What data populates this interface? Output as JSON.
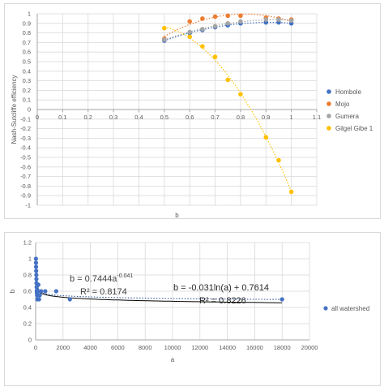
{
  "chart_data": [
    {
      "type": "scatter",
      "title": "",
      "xlabel": "b",
      "ylabel": "Nash-Sutcliffe efficiency",
      "xlim": [
        0,
        1.1
      ],
      "ylim": [
        -1,
        1
      ],
      "x_ticks": [
        "0",
        "0.1",
        "0.2",
        "0.3",
        "0.4",
        "0.5",
        "0.6",
        "0.7",
        "0.8",
        "0.9",
        "1",
        "1.1"
      ],
      "y_ticks": [
        "1",
        "0.9",
        "0.8",
        "0.7",
        "0.6",
        "0.5",
        "0.4",
        "0.3",
        "0.2",
        "0.1",
        "0",
        "-0.1",
        "-0.2",
        "-0.3",
        "-0.4",
        "-0.5",
        "-0.6",
        "-0.7",
        "-0.8",
        "-0.9",
        "-1"
      ],
      "grid": true,
      "legend_position": "right",
      "series": [
        {
          "name": "Hombole",
          "color": "#4472C4",
          "trendline": "polynomial",
          "x": [
            0.5,
            0.6,
            0.65,
            0.7,
            0.75,
            0.8,
            0.9,
            0.95,
            1.0
          ],
          "y": [
            0.72,
            0.8,
            0.83,
            0.86,
            0.88,
            0.9,
            0.91,
            0.91,
            0.9
          ]
        },
        {
          "name": "Mojo",
          "color": "#ED7D31",
          "trendline": "polynomial",
          "x": [
            0.5,
            0.6,
            0.65,
            0.7,
            0.75,
            0.8,
            0.9,
            0.95,
            1.0
          ],
          "y": [
            0.74,
            0.92,
            0.95,
            0.97,
            0.98,
            0.98,
            0.96,
            0.95,
            0.94
          ]
        },
        {
          "name": "Gumera",
          "color": "#A5A5A5",
          "trendline": "polynomial",
          "x": [
            0.5,
            0.6,
            0.65,
            0.7,
            0.75,
            0.8,
            0.9,
            0.95,
            1.0
          ],
          "y": [
            0.73,
            0.81,
            0.84,
            0.87,
            0.9,
            0.92,
            0.94,
            0.94,
            0.93
          ]
        },
        {
          "name": "Gilgel Gibe 1",
          "color": "#FFC000",
          "trendline": "polynomial",
          "x": [
            0.5,
            0.6,
            0.65,
            0.7,
            0.75,
            0.8,
            0.9,
            0.95,
            1.0
          ],
          "y": [
            0.85,
            0.76,
            0.66,
            0.55,
            0.31,
            0.16,
            -0.29,
            -0.53,
            -0.86
          ]
        }
      ]
    },
    {
      "type": "scatter",
      "title": "",
      "xlabel": "a",
      "ylabel": "b",
      "xlim": [
        0,
        20000
      ],
      "ylim": [
        0,
        1.2
      ],
      "x_ticks": [
        "0",
        "2000",
        "4000",
        "6000",
        "8000",
        "10000",
        "12000",
        "14000",
        "16000",
        "18000",
        "20000"
      ],
      "y_ticks": [
        "0",
        "0.2",
        "0.4",
        "0.6",
        "0.8",
        "1",
        "1.2"
      ],
      "grid": true,
      "legend_position": "right",
      "series": [
        {
          "name": "all watershed",
          "color": "#4472C4",
          "x": [
            20,
            25,
            30,
            40,
            50,
            55,
            60,
            70,
            80,
            90,
            100,
            110,
            120,
            150,
            200,
            250,
            300,
            400,
            700,
            1500,
            2500,
            18000
          ],
          "y": [
            1.0,
            0.95,
            0.9,
            0.85,
            0.8,
            0.75,
            0.7,
            0.65,
            0.6,
            0.58,
            0.55,
            0.62,
            0.5,
            0.6,
            0.68,
            0.5,
            0.55,
            0.6,
            0.6,
            0.6,
            0.5,
            0.5
          ]
        }
      ],
      "annotations": [
        {
          "text_base": "b = 0.7444a",
          "text_sup": "-0.041",
          "r2": "R² = 0.8174"
        },
        {
          "text": "b = -0.031ln(a) + 0.7614",
          "r2": "R² = 0.8226"
        }
      ]
    }
  ]
}
